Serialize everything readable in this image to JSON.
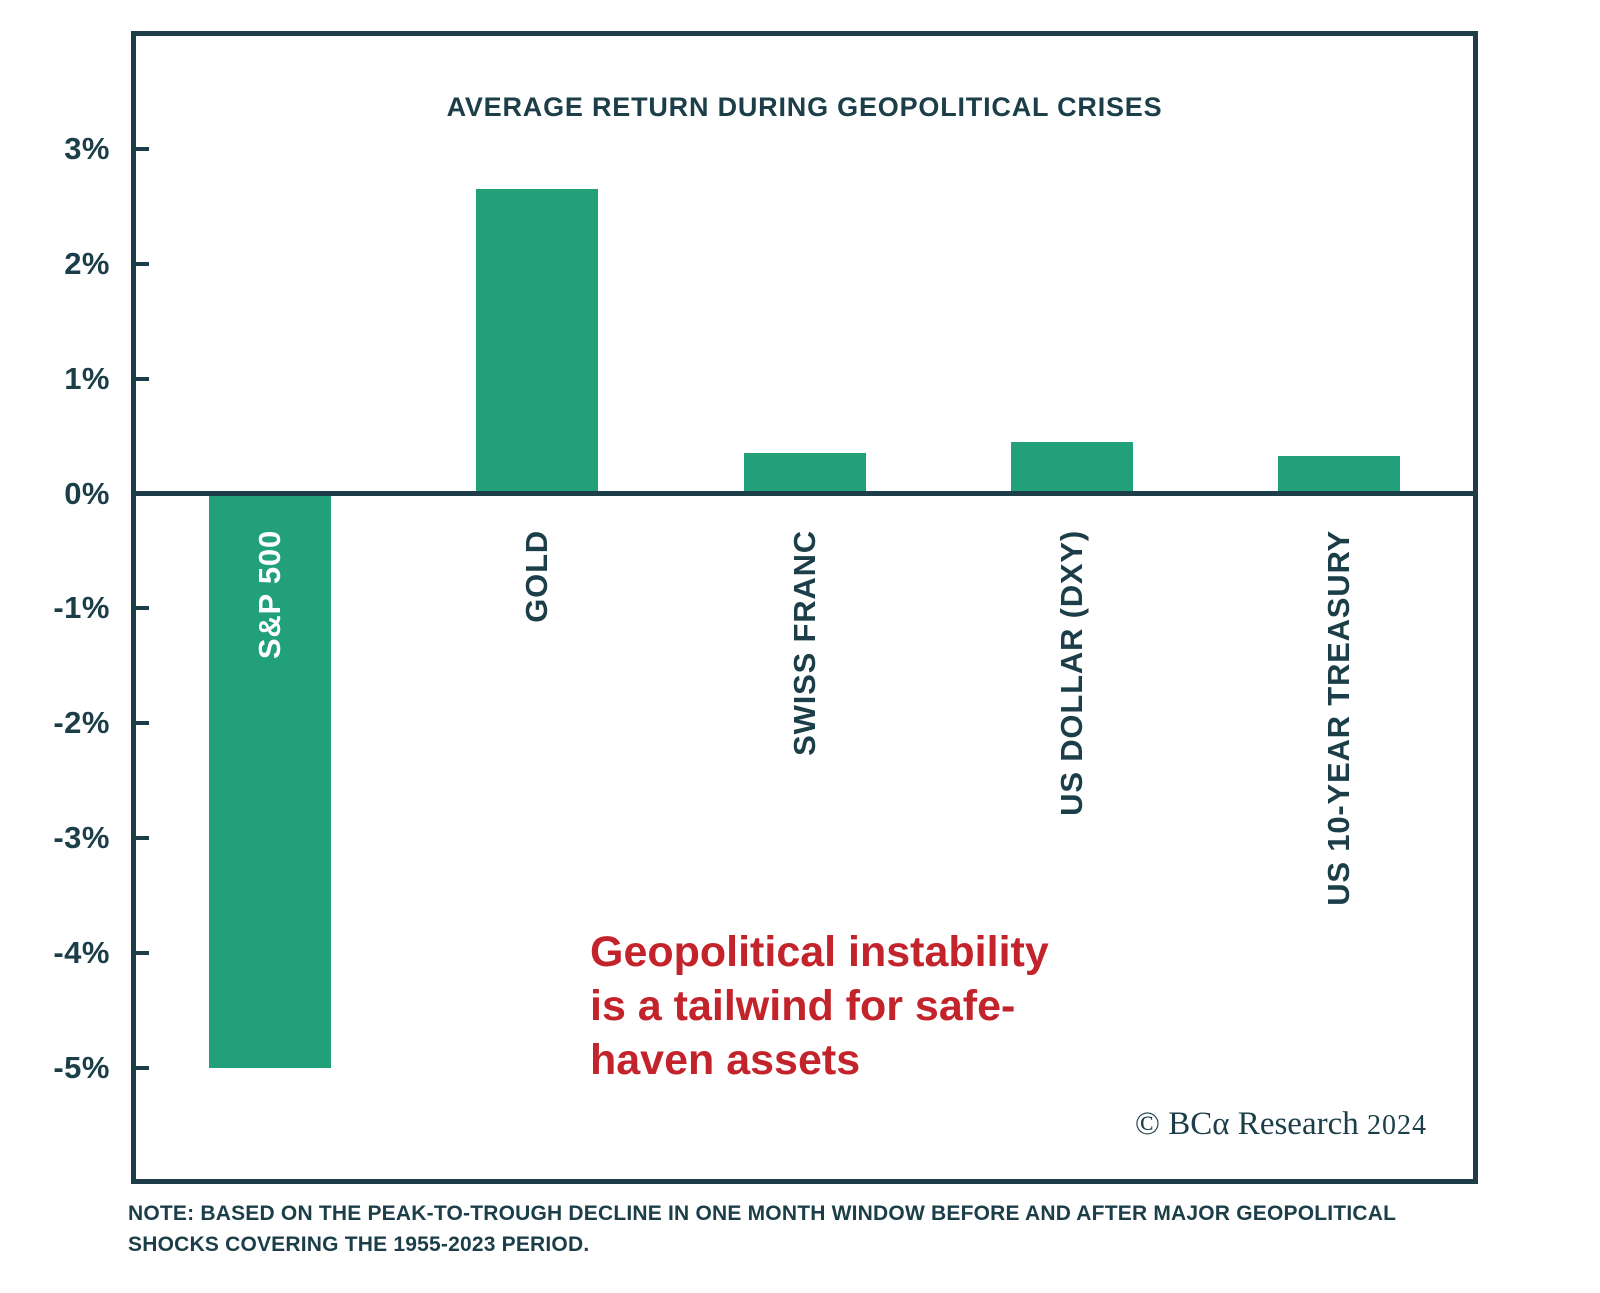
{
  "chart_data": {
    "type": "bar",
    "title": "AVERAGE RETURN DURING GEOPOLITICAL CRISES",
    "categories": [
      "S&P 500",
      "GOLD",
      "SWISS FRANC",
      "US DOLLAR (DXY)",
      "US 10-YEAR TREASURY"
    ],
    "values": [
      -5.0,
      2.65,
      0.35,
      0.45,
      0.33
    ],
    "unit": "%",
    "xlabel": "",
    "ylabel": "",
    "ylim": [
      -6,
      4
    ],
    "yticks": [
      3,
      2,
      1,
      0,
      -1,
      -2,
      -3,
      -4,
      -5
    ],
    "ytick_labels": [
      "3%",
      "2%",
      "1%",
      "0%",
      "-1%",
      "-2%",
      "-3%",
      "-4%",
      "-5%"
    ],
    "grid": false,
    "legend": false,
    "bar_color": "#21a07a",
    "axis_color": "#1b3e49",
    "inside_bar_label_color": "#ffffff"
  },
  "annotation": {
    "text": "Geopolitical instability\nis a tailwind for safe-\nhaven assets",
    "color": "#c3232b"
  },
  "copyright": {
    "brand": "© BCα Research",
    "year": "2024"
  },
  "note": "NOTE: BASED ON THE PEAK-TO-TROUGH DECLINE IN ONE MONTH WINDOW BEFORE AND AFTER MAJOR GEOPOLITICAL\nSHOCKS COVERING THE 1955-2023 PERIOD."
}
